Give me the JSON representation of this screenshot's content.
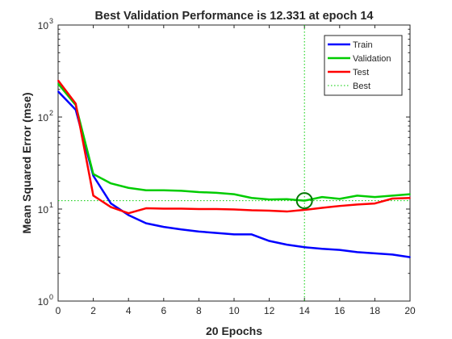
{
  "chart_data": {
    "type": "line",
    "title": "Best Validation Performance is 12.331 at epoch 14",
    "xlabel": "20 Epochs",
    "ylabel": "Mean Squared Error  (mse)",
    "xlim": [
      0,
      20
    ],
    "ylim": [
      1,
      1000
    ],
    "yscale": "log",
    "x_ticks": [
      0,
      2,
      4,
      6,
      8,
      10,
      12,
      14,
      16,
      18,
      20
    ],
    "y_ticks": [
      {
        "value": 1,
        "base": "10",
        "exp": "0"
      },
      {
        "value": 10,
        "base": "10",
        "exp": "1"
      },
      {
        "value": 100,
        "base": "10",
        "exp": "2"
      },
      {
        "value": 1000,
        "base": "10",
        "exp": "3"
      }
    ],
    "grid": false,
    "legend_position": "top-right",
    "x": [
      0,
      1,
      2,
      3,
      4,
      5,
      6,
      7,
      8,
      9,
      10,
      11,
      12,
      13,
      14,
      15,
      16,
      17,
      18,
      19,
      20
    ],
    "series": [
      {
        "name": "Train",
        "color": "#0000ff",
        "style": "solid",
        "values": [
          190,
          120,
          23,
          11.5,
          8.6,
          7.0,
          6.4,
          6.0,
          5.7,
          5.5,
          5.3,
          5.3,
          4.5,
          4.1,
          3.85,
          3.7,
          3.6,
          3.4,
          3.3,
          3.2,
          3.0
        ]
      },
      {
        "name": "Validation",
        "color": "#00cc00",
        "style": "solid",
        "values": [
          230,
          135,
          24,
          19,
          17,
          16,
          16,
          15.8,
          15.3,
          15,
          14.5,
          13.2,
          12.7,
          12.8,
          12.331,
          13.5,
          12.9,
          14,
          13.5,
          14,
          14.5
        ]
      },
      {
        "name": "Test",
        "color": "#ff0000",
        "style": "solid",
        "values": [
          250,
          140,
          14,
          10.5,
          9,
          10.2,
          10.1,
          10.1,
          10,
          10,
          9.9,
          9.7,
          9.6,
          9.4,
          9.8,
          10.3,
          10.8,
          11.2,
          11.5,
          13,
          13.2
        ]
      }
    ],
    "best": {
      "name": "Best",
      "color": "#00cc00",
      "style": "dotted",
      "epoch": 14,
      "value": 12.331
    }
  }
}
